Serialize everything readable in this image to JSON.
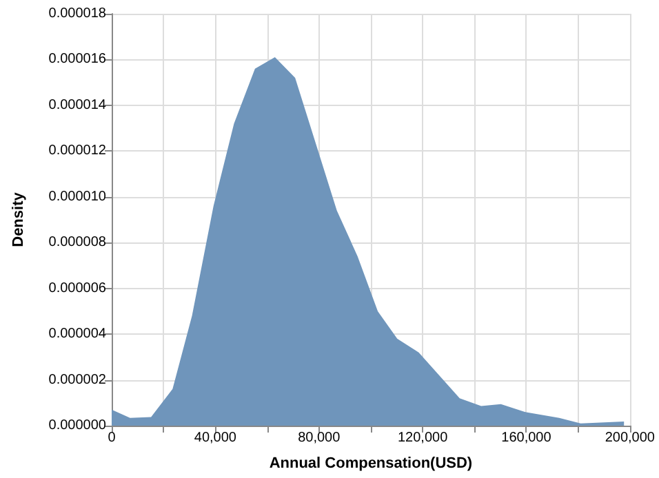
{
  "chart_data": {
    "type": "area",
    "xlabel": "Annual Compensation(USD)",
    "ylabel": "Density",
    "color": "#6f95bb",
    "marker": "none",
    "grid": true,
    "x": [
      0,
      7100,
      15200,
      23500,
      31000,
      39300,
      47200,
      55300,
      63000,
      70800,
      86900,
      94900,
      102700,
      110200,
      118500,
      134300,
      142600,
      150200,
      159400,
      172700,
      181000,
      197700
    ],
    "values": [
      7e-07,
      3.4e-07,
      3.8e-07,
      1.6e-06,
      4.8e-06,
      9.6e-06,
      1.32e-05,
      1.56e-05,
      1.61e-05,
      1.52e-05,
      9.4e-06,
      7.4e-06,
      5e-06,
      3.8e-06,
      3.2e-06,
      1.2e-06,
      8.6e-07,
      9.4e-07,
      6e-07,
      3.4e-07,
      1e-07,
      1.8e-07
    ],
    "xlim": [
      0,
      200000
    ],
    "xticks": [
      {
        "value": 0,
        "label": "0"
      },
      {
        "value": 20000,
        "label": null
      },
      {
        "value": 40000,
        "label": "40,000"
      },
      {
        "value": 60000,
        "label": null
      },
      {
        "value": 80000,
        "label": "80,000"
      },
      {
        "value": 100000,
        "label": null
      },
      {
        "value": 120000,
        "label": "120,000"
      },
      {
        "value": 140000,
        "label": null
      },
      {
        "value": 160000,
        "label": "160,000"
      },
      {
        "value": 180000,
        "label": null
      },
      {
        "value": 200000,
        "label": "200,000"
      }
    ],
    "ylim": [
      0,
      1.8e-05
    ],
    "yticks": [
      {
        "value": 0,
        "label": "0.000000"
      },
      {
        "value": 2e-06,
        "label": "0.000002"
      },
      {
        "value": 4e-06,
        "label": "0.000004"
      },
      {
        "value": 6e-06,
        "label": "0.000006"
      },
      {
        "value": 8e-06,
        "label": "0.000008"
      },
      {
        "value": 1e-05,
        "label": "0.000010"
      },
      {
        "value": 1.2e-05,
        "label": "0.000012"
      },
      {
        "value": 1.4e-05,
        "label": "0.000014"
      },
      {
        "value": 1.6e-05,
        "label": "0.000016"
      },
      {
        "value": 1.8e-05,
        "label": "0.000018"
      }
    ]
  }
}
